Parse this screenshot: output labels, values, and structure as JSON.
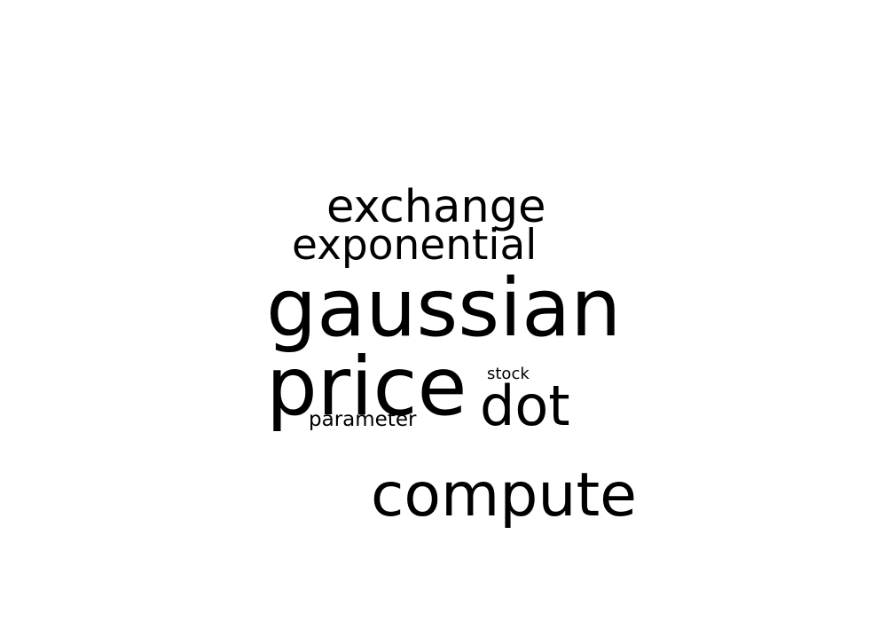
{
  "background_color": "#ffffff",
  "text_color": "#000000",
  "words": [
    {
      "text": "exchange"
    },
    {
      "text": "exponential"
    },
    {
      "text": "gaussian"
    },
    {
      "text": "price"
    },
    {
      "text": "stock"
    },
    {
      "text": "dot"
    },
    {
      "text": "parameter"
    },
    {
      "text": "compute"
    }
  ]
}
